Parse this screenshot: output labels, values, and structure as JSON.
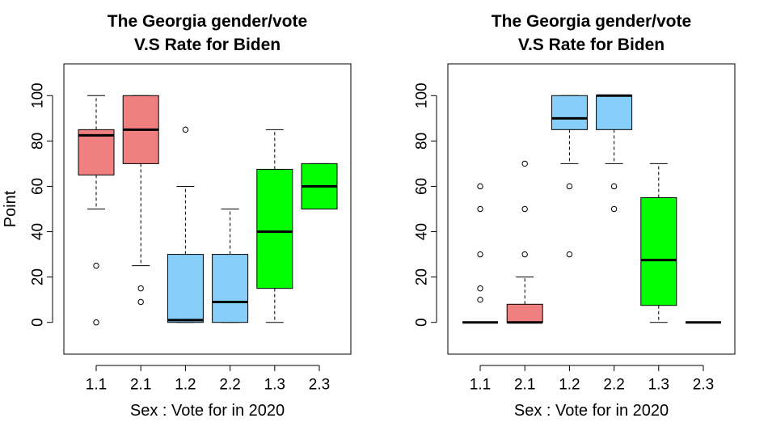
{
  "chart_data": [
    {
      "type": "boxplot",
      "title": "The Georgia gender/vote\nV.S Rate for Biden",
      "xlabel": "Sex : Vote for in 2020",
      "ylabel": "Point",
      "ylim": [
        -14,
        114
      ],
      "yticks": [
        0,
        20,
        40,
        60,
        80,
        100
      ],
      "categories": [
        "1.1",
        "2.1",
        "1.2",
        "2.2",
        "1.3",
        "2.3"
      ],
      "colors": [
        "#f08080",
        "#f08080",
        "#87cefa",
        "#87cefa",
        "#00ff00",
        "#00ff00"
      ],
      "boxes": [
        {
          "whisker_low": 50,
          "q1": 65,
          "median": 82.5,
          "q3": 85,
          "whisker_high": 100,
          "outliers": [
            25,
            0
          ]
        },
        {
          "whisker_low": 25,
          "q1": 70,
          "median": 85,
          "q3": 100,
          "whisker_high": 100,
          "outliers": [
            15,
            9
          ]
        },
        {
          "whisker_low": 0,
          "q1": 0,
          "median": 1,
          "q3": 30,
          "whisker_high": 60,
          "outliers": [
            85
          ]
        },
        {
          "whisker_low": 0,
          "q1": 0,
          "median": 9,
          "q3": 30,
          "whisker_high": 50,
          "outliers": []
        },
        {
          "whisker_low": 0,
          "q1": 15,
          "median": 40,
          "q3": 67.5,
          "whisker_high": 85,
          "outliers": []
        },
        {
          "whisker_low": 50,
          "q1": 50,
          "median": 60,
          "q3": 70,
          "whisker_high": 70,
          "outliers": []
        }
      ]
    },
    {
      "type": "boxplot",
      "title": "The Georgia gender/vote\nV.S Rate for Biden",
      "xlabel": "Sex : Vote for in 2020",
      "ylabel": "",
      "ylim": [
        -14,
        114
      ],
      "yticks": [
        0,
        20,
        40,
        60,
        80,
        100
      ],
      "categories": [
        "1.1",
        "2.1",
        "1.2",
        "2.2",
        "1.3",
        "2.3"
      ],
      "colors": [
        "#f08080",
        "#f08080",
        "#87cefa",
        "#87cefa",
        "#00ff00",
        "#00ff00"
      ],
      "boxes": [
        {
          "whisker_low": 0,
          "q1": 0,
          "median": 0,
          "q3": 0,
          "whisker_high": 0,
          "outliers": [
            60,
            50,
            30,
            15,
            10
          ]
        },
        {
          "whisker_low": 0,
          "q1": 0,
          "median": 0,
          "q3": 8,
          "whisker_high": 20,
          "outliers": [
            70,
            50,
            30
          ]
        },
        {
          "whisker_low": 70,
          "q1": 85,
          "median": 90,
          "q3": 100,
          "whisker_high": 100,
          "outliers": [
            60,
            30
          ]
        },
        {
          "whisker_low": 70,
          "q1": 85,
          "median": 100,
          "q3": 100,
          "whisker_high": 100,
          "outliers": [
            60,
            50
          ]
        },
        {
          "whisker_low": 0,
          "q1": 7.5,
          "median": 27.5,
          "q3": 55,
          "whisker_high": 70,
          "outliers": []
        },
        {
          "whisker_low": 0,
          "q1": 0,
          "median": 0,
          "q3": 0,
          "whisker_high": 0,
          "outliers": []
        }
      ]
    }
  ]
}
